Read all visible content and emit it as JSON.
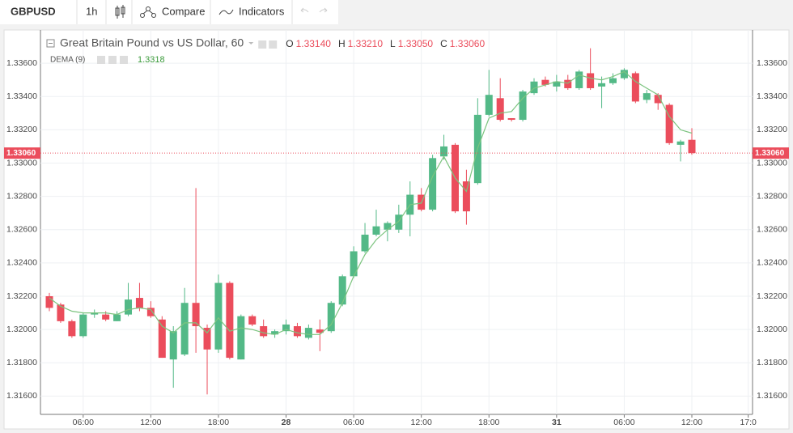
{
  "toolbar": {
    "symbol": "GBPUSD",
    "interval": "1h",
    "compare": "Compare",
    "indicators": "Indicators"
  },
  "chart_data": {
    "type": "candlestick",
    "title": "Great Britain Pound vs US Dollar, 60",
    "ohlc_legend": [
      {
        "key": "O",
        "value": "1.33140"
      },
      {
        "key": "H",
        "value": "1.33210"
      },
      {
        "key": "L",
        "value": "1.33050"
      },
      {
        "key": "C",
        "value": "1.33060"
      }
    ],
    "up_color": "#53b987",
    "down_color": "#eb4d5c",
    "categories": [
      null,
      null,
      null,
      "06:00",
      null,
      null,
      null,
      null,
      null,
      "12:00",
      null,
      null,
      null,
      null,
      null,
      "18:00",
      null,
      null,
      null,
      null,
      null,
      "28",
      null,
      null,
      null,
      null,
      null,
      "06:00",
      null,
      null,
      null,
      null,
      null,
      "12:00",
      null,
      null,
      null,
      null,
      null,
      "18:00",
      null,
      null,
      null,
      null,
      null,
      "31",
      null,
      null,
      null,
      null,
      null,
      "06:00",
      null,
      null,
      null,
      null,
      null,
      "12:00",
      null,
      null,
      null,
      null,
      "17:0"
    ],
    "candles": {
      "open": [
        1.322,
        1.3215,
        1.3205,
        1.3196,
        1.3209,
        1.3209,
        1.3205,
        1.3209,
        1.3219,
        1.3213,
        1.3206,
        1.3182,
        1.3185,
        1.3216,
        1.3201,
        1.3188,
        1.3228,
        1.3182,
        1.3208,
        1.3202,
        1.3197,
        1.3199,
        1.3202,
        1.3195,
        1.32,
        1.3199,
        1.3215,
        1.3232,
        1.3247,
        1.3257,
        1.326,
        1.326,
        1.3269,
        1.3281,
        1.3272,
        1.3304,
        1.3311,
        1.3289,
        1.3288,
        1.3329,
        1.3339,
        1.3327,
        1.3326,
        1.3342,
        1.335,
        1.3346,
        1.335,
        1.3345,
        1.3354,
        1.3346,
        1.3348,
        1.3351,
        1.3354,
        1.3338,
        1.3341,
        1.3335,
        1.3311,
        1.3314,
        null,
        null,
        null,
        null,
        null
      ],
      "high": [
        1.3222,
        1.3216,
        1.3206,
        1.321,
        1.3212,
        1.3211,
        1.3211,
        1.3228,
        1.3228,
        1.3217,
        1.3208,
        1.3202,
        1.3225,
        1.3285,
        1.3203,
        1.3233,
        1.3229,
        1.3209,
        1.3209,
        1.3206,
        1.32,
        1.3206,
        1.3204,
        1.3203,
        1.3206,
        1.3217,
        1.3233,
        1.325,
        1.3264,
        1.3272,
        1.3265,
        1.3275,
        1.3289,
        1.3285,
        1.3305,
        1.3317,
        1.3312,
        1.3296,
        1.3339,
        1.3356,
        1.3351,
        1.3327,
        1.3344,
        1.3351,
        1.3352,
        1.3353,
        1.3353,
        1.3356,
        1.3369,
        1.3352,
        1.3354,
        1.3357,
        1.3355,
        1.3344,
        1.3342,
        1.3336,
        1.3314,
        1.3321,
        null,
        null,
        null,
        null,
        null
      ],
      "low": [
        1.3211,
        1.3204,
        1.3195,
        1.3195,
        1.3207,
        1.3205,
        1.3205,
        1.3208,
        1.3211,
        1.3207,
        1.3183,
        1.3165,
        1.3184,
        1.3186,
        1.3161,
        1.3186,
        1.3182,
        1.3182,
        1.3202,
        1.3195,
        1.3195,
        1.3197,
        1.3195,
        1.3194,
        1.3187,
        1.3198,
        1.3214,
        1.3231,
        1.3246,
        1.3256,
        1.3253,
        1.3258,
        1.3256,
        1.3271,
        1.3271,
        1.3302,
        1.327,
        1.3263,
        1.3287,
        1.3328,
        1.3325,
        1.3325,
        1.3325,
        1.3341,
        1.3346,
        1.3343,
        1.3344,
        1.3344,
        1.3344,
        1.3333,
        1.3347,
        1.335,
        1.3336,
        1.3336,
        1.3332,
        1.3311,
        1.3301,
        1.3305,
        null,
        null,
        null,
        null,
        null
      ],
      "close": [
        1.3213,
        1.3205,
        1.3196,
        1.3209,
        1.321,
        1.3206,
        1.3209,
        1.3218,
        1.3213,
        1.3208,
        1.3183,
        1.3199,
        1.3216,
        1.3202,
        1.3188,
        1.3228,
        1.3183,
        1.3208,
        1.3203,
        1.3196,
        1.3199,
        1.3203,
        1.3196,
        1.3201,
        1.3198,
        1.3216,
        1.3232,
        1.3247,
        1.3257,
        1.3262,
        1.3264,
        1.3269,
        1.3281,
        1.3272,
        1.3303,
        1.331,
        1.3271,
        1.3271,
        1.3329,
        1.3341,
        1.3326,
        1.3326,
        1.3343,
        1.3349,
        1.3347,
        1.3349,
        1.3345,
        1.3355,
        1.3345,
        1.3348,
        1.3351,
        1.3356,
        1.3337,
        1.3342,
        1.3336,
        1.3312,
        1.3313,
        1.3306,
        null,
        null,
        null,
        null,
        null
      ]
    },
    "indicator": {
      "name": "DEMA (9)",
      "color": "#7cc47f",
      "values": [
        1.3219,
        1.3214,
        1.3211,
        1.321,
        1.321,
        1.321,
        1.3209,
        1.3212,
        1.3213,
        1.3212,
        1.3202,
        1.3198,
        1.3204,
        1.3204,
        1.3198,
        1.3207,
        1.3199,
        1.3201,
        1.32,
        1.3198,
        1.3197,
        1.32,
        1.3198,
        1.3197,
        1.3197,
        1.3203,
        1.3216,
        1.3232,
        1.3245,
        1.3254,
        1.326,
        1.3265,
        1.3275,
        1.3276,
        1.3292,
        1.3304,
        1.3291,
        1.3283,
        1.3309,
        1.3327,
        1.333,
        1.3331,
        1.3339,
        1.3345,
        1.3347,
        1.3349,
        1.3348,
        1.3353,
        1.3351,
        1.335,
        1.3352,
        1.3355,
        1.3349,
        1.3345,
        1.3341,
        1.3328,
        1.332,
        1.3318,
        null,
        null,
        null,
        null,
        null
      ]
    },
    "last_price": {
      "value": 1.3306,
      "label": "1.33060"
    },
    "ylim": [
      1.3149,
      1.338
    ],
    "yticks": [
      {
        "value": 1.316,
        "label": "1.31600"
      },
      {
        "value": 1.318,
        "label": "1.31800"
      },
      {
        "value": 1.32,
        "label": "1.32000"
      },
      {
        "value": 1.322,
        "label": "1.32200"
      },
      {
        "value": 1.324,
        "label": "1.32400"
      },
      {
        "value": 1.326,
        "label": "1.32600"
      },
      {
        "value": 1.328,
        "label": "1.32800"
      },
      {
        "value": 1.33,
        "label": "1.33000"
      },
      {
        "value": 1.332,
        "label": "1.33200"
      },
      {
        "value": 1.334,
        "label": "1.33400"
      },
      {
        "value": 1.336,
        "label": "1.33600"
      }
    ],
    "grid": true
  }
}
